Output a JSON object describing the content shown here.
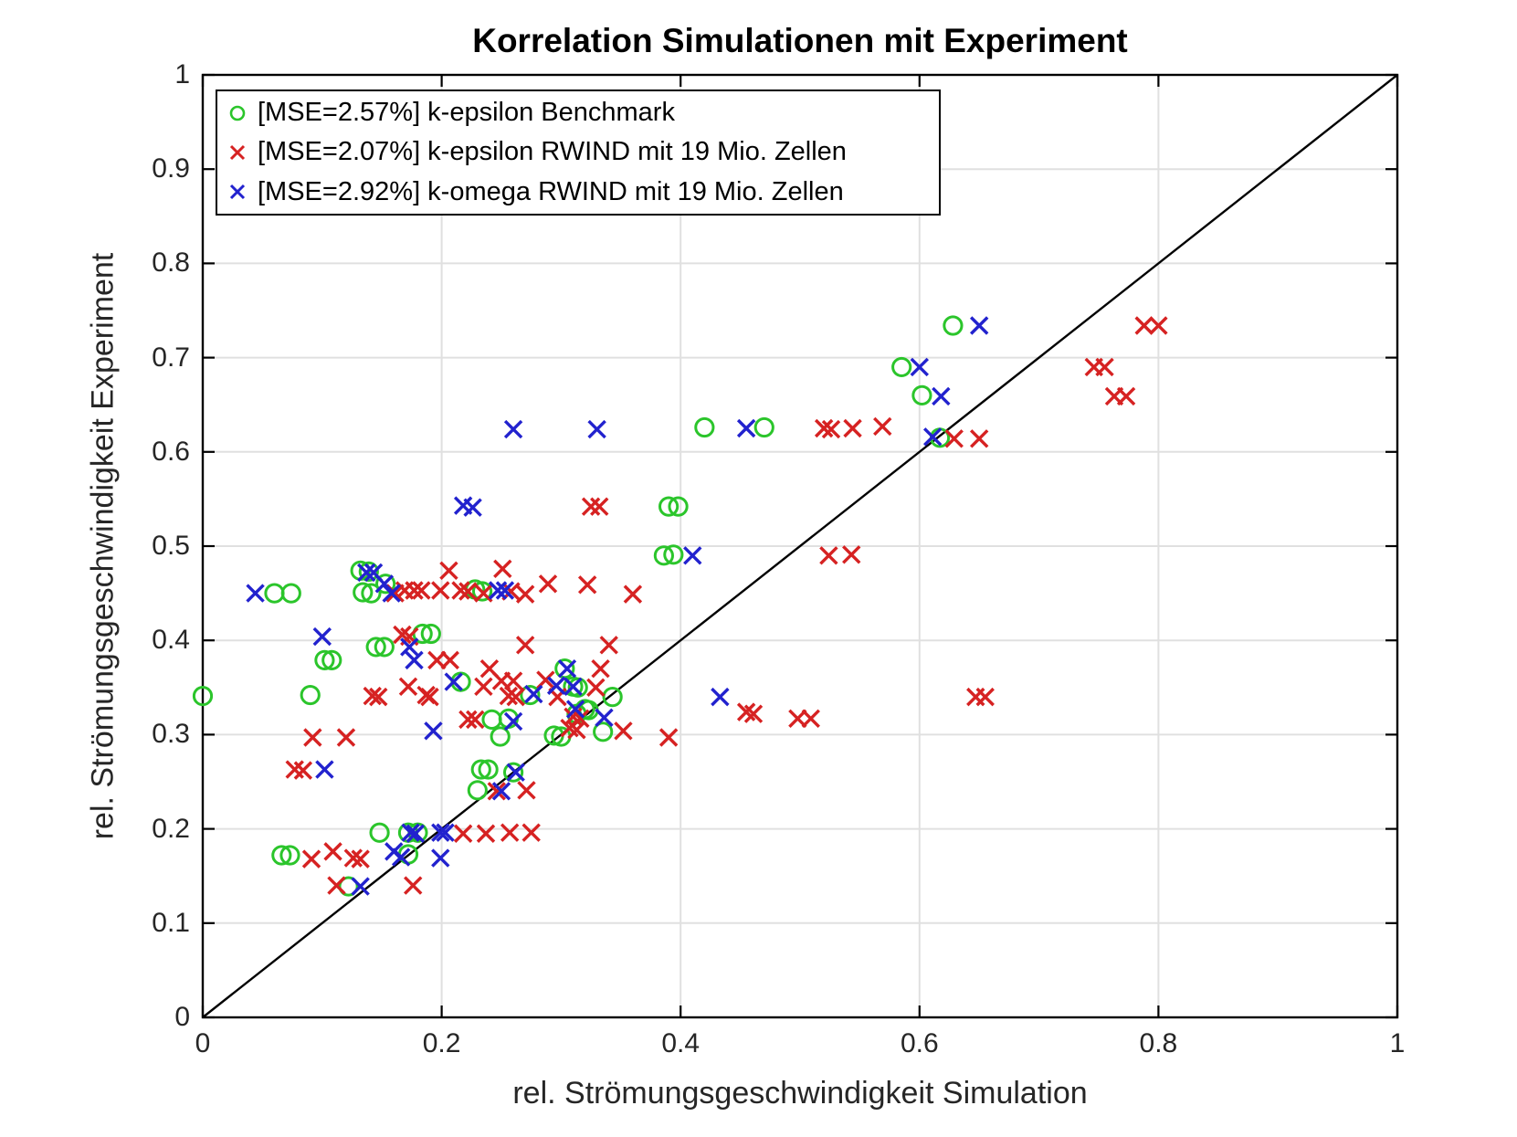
{
  "title": "Korrelation Simulationen mit Experiment",
  "axes": {
    "xlabel": "rel. Strömungsgeschwindigkeit Simulation",
    "ylabel": "rel. Strömungsgeschwindigkeit Experiment",
    "x_ticks": [
      0,
      0.2,
      0.4,
      0.6,
      0.8,
      1
    ],
    "x_tick_labels": [
      "0",
      "0.2",
      "0.4",
      "0.6",
      "0.8",
      "1"
    ],
    "y_ticks": [
      0,
      0.1,
      0.2,
      0.3,
      0.4,
      0.5,
      0.6,
      0.7,
      0.8,
      0.9,
      1
    ],
    "y_tick_labels": [
      "0",
      "0.1",
      "0.2",
      "0.3",
      "0.4",
      "0.5",
      "0.6",
      "0.7",
      "0.8",
      "0.9",
      "1"
    ],
    "grid": true
  },
  "colors": {
    "benchmark_green": "#2BC52B",
    "k_epsilon_red": "#D62222",
    "k_omega_blue": "#2222CE",
    "grid": "#E0E0E0",
    "axis": "#000000",
    "tick_text": "#262626",
    "reference_line": "#000000"
  },
  "legend": {
    "position": "top-left",
    "entries": [
      {
        "marker": "circle",
        "color": "#2BC52B",
        "label": "[MSE=2.57%] k-epsilon Benchmark"
      },
      {
        "marker": "x",
        "color": "#D62222",
        "label": "[MSE=2.07%] k-epsilon RWIND mit 19 Mio. Zellen"
      },
      {
        "marker": "x",
        "color": "#2222CE",
        "label": "[MSE=2.92%] k-omega RWIND mit 19 Mio. Zellen"
      }
    ]
  },
  "chart_data": {
    "type": "scatter",
    "title": "Korrelation Simulationen mit Experiment",
    "xlabel": "rel. Strömungsgeschwindigkeit Simulation",
    "ylabel": "rel. Strömungsgeschwindigkeit Experiment",
    "xlim": [
      0,
      1
    ],
    "ylim": [
      0,
      1
    ],
    "grid": true,
    "reference_line": {
      "type": "identity",
      "from": [
        0,
        0
      ],
      "to": [
        1,
        1
      ]
    },
    "series": [
      {
        "name": "[MSE=2.57%] k-epsilon Benchmark",
        "marker": "circle",
        "color": "#2BC52B",
        "points": [
          [
            0.0,
            0.341
          ],
          [
            0.06,
            0.45
          ],
          [
            0.074,
            0.45
          ],
          [
            0.09,
            0.342
          ],
          [
            0.102,
            0.379
          ],
          [
            0.108,
            0.379
          ],
          [
            0.122,
            0.139
          ],
          [
            0.066,
            0.172
          ],
          [
            0.073,
            0.172
          ],
          [
            0.132,
            0.474
          ],
          [
            0.139,
            0.473
          ],
          [
            0.134,
            0.451
          ],
          [
            0.141,
            0.45
          ],
          [
            0.145,
            0.393
          ],
          [
            0.152,
            0.393
          ],
          [
            0.153,
            0.46
          ],
          [
            0.148,
            0.196
          ],
          [
            0.172,
            0.196
          ],
          [
            0.18,
            0.196
          ],
          [
            0.172,
            0.173
          ],
          [
            0.184,
            0.407
          ],
          [
            0.191,
            0.407
          ],
          [
            0.216,
            0.356
          ],
          [
            0.228,
            0.454
          ],
          [
            0.234,
            0.452
          ],
          [
            0.23,
            0.241
          ],
          [
            0.233,
            0.263
          ],
          [
            0.239,
            0.263
          ],
          [
            0.242,
            0.316
          ],
          [
            0.249,
            0.298
          ],
          [
            0.256,
            0.317
          ],
          [
            0.26,
            0.26
          ],
          [
            0.274,
            0.342
          ],
          [
            0.294,
            0.299
          ],
          [
            0.3,
            0.298
          ],
          [
            0.303,
            0.37
          ],
          [
            0.31,
            0.351
          ],
          [
            0.314,
            0.35
          ],
          [
            0.313,
            0.322
          ],
          [
            0.32,
            0.327
          ],
          [
            0.323,
            0.326
          ],
          [
            0.335,
            0.303
          ],
          [
            0.343,
            0.34
          ],
          [
            0.386,
            0.49
          ],
          [
            0.394,
            0.491
          ],
          [
            0.39,
            0.542
          ],
          [
            0.398,
            0.542
          ],
          [
            0.42,
            0.626
          ],
          [
            0.47,
            0.626
          ],
          [
            0.585,
            0.69
          ],
          [
            0.602,
            0.66
          ],
          [
            0.617,
            0.615
          ],
          [
            0.628,
            0.734
          ]
        ]
      },
      {
        "name": "[MSE=2.07%] k-epsilon RWIND mit 19 Mio. Zellen",
        "marker": "x",
        "color": "#D62222",
        "points": [
          [
            0.077,
            0.263
          ],
          [
            0.084,
            0.262
          ],
          [
            0.091,
            0.168
          ],
          [
            0.092,
            0.297
          ],
          [
            0.109,
            0.176
          ],
          [
            0.112,
            0.14
          ],
          [
            0.12,
            0.297
          ],
          [
            0.126,
            0.169
          ],
          [
            0.132,
            0.168
          ],
          [
            0.142,
            0.341
          ],
          [
            0.147,
            0.34
          ],
          [
            0.161,
            0.45
          ],
          [
            0.167,
            0.406
          ],
          [
            0.173,
            0.404
          ],
          [
            0.169,
            0.453
          ],
          [
            0.177,
            0.453
          ],
          [
            0.183,
            0.453
          ],
          [
            0.172,
            0.351
          ],
          [
            0.176,
            0.14
          ],
          [
            0.187,
            0.342
          ],
          [
            0.19,
            0.34
          ],
          [
            0.196,
            0.379
          ],
          [
            0.199,
            0.453
          ],
          [
            0.206,
            0.474
          ],
          [
            0.207,
            0.379
          ],
          [
            0.216,
            0.453
          ],
          [
            0.222,
            0.452
          ],
          [
            0.218,
            0.195
          ],
          [
            0.222,
            0.316
          ],
          [
            0.228,
            0.316
          ],
          [
            0.235,
            0.45
          ],
          [
            0.235,
            0.351
          ],
          [
            0.237,
            0.195
          ],
          [
            0.24,
            0.37
          ],
          [
            0.246,
            0.24
          ],
          [
            0.25,
            0.357
          ],
          [
            0.251,
            0.476
          ],
          [
            0.256,
            0.341
          ],
          [
            0.257,
            0.196
          ],
          [
            0.258,
            0.452
          ],
          [
            0.26,
            0.357
          ],
          [
            0.262,
            0.34
          ],
          [
            0.27,
            0.395
          ],
          [
            0.27,
            0.449
          ],
          [
            0.271,
            0.241
          ],
          [
            0.275,
            0.196
          ],
          [
            0.287,
            0.358
          ],
          [
            0.289,
            0.46
          ],
          [
            0.297,
            0.34
          ],
          [
            0.307,
            0.307
          ],
          [
            0.313,
            0.305
          ],
          [
            0.31,
            0.319
          ],
          [
            0.316,
            0.317
          ],
          [
            0.322,
            0.459
          ],
          [
            0.325,
            0.542
          ],
          [
            0.332,
            0.542
          ],
          [
            0.329,
            0.35
          ],
          [
            0.333,
            0.37
          ],
          [
            0.34,
            0.395
          ],
          [
            0.352,
            0.304
          ],
          [
            0.36,
            0.449
          ],
          [
            0.39,
            0.297
          ],
          [
            0.455,
            0.324
          ],
          [
            0.461,
            0.322
          ],
          [
            0.498,
            0.317
          ],
          [
            0.509,
            0.317
          ],
          [
            0.52,
            0.625
          ],
          [
            0.526,
            0.624
          ],
          [
            0.524,
            0.49
          ],
          [
            0.543,
            0.491
          ],
          [
            0.544,
            0.625
          ],
          [
            0.569,
            0.627
          ],
          [
            0.629,
            0.614
          ],
          [
            0.65,
            0.614
          ],
          [
            0.647,
            0.34
          ],
          [
            0.655,
            0.34
          ],
          [
            0.746,
            0.69
          ],
          [
            0.755,
            0.69
          ],
          [
            0.763,
            0.659
          ],
          [
            0.773,
            0.659
          ],
          [
            0.788,
            0.734
          ],
          [
            0.8,
            0.734
          ]
        ]
      },
      {
        "name": "[MSE=2.92%] k-omega RWIND mit 19 Mio. Zellen",
        "marker": "x",
        "color": "#2222CE",
        "points": [
          [
            0.044,
            0.45
          ],
          [
            0.1,
            0.404
          ],
          [
            0.102,
            0.263
          ],
          [
            0.132,
            0.139
          ],
          [
            0.137,
            0.472
          ],
          [
            0.143,
            0.472
          ],
          [
            0.152,
            0.46
          ],
          [
            0.158,
            0.45
          ],
          [
            0.16,
            0.176
          ],
          [
            0.166,
            0.17
          ],
          [
            0.173,
            0.393
          ],
          [
            0.177,
            0.379
          ],
          [
            0.174,
            0.196
          ],
          [
            0.178,
            0.195
          ],
          [
            0.193,
            0.304
          ],
          [
            0.199,
            0.196
          ],
          [
            0.203,
            0.196
          ],
          [
            0.199,
            0.169
          ],
          [
            0.21,
            0.356
          ],
          [
            0.218,
            0.543
          ],
          [
            0.226,
            0.541
          ],
          [
            0.247,
            0.453
          ],
          [
            0.253,
            0.453
          ],
          [
            0.25,
            0.24
          ],
          [
            0.26,
            0.624
          ],
          [
            0.26,
            0.314
          ],
          [
            0.262,
            0.26
          ],
          [
            0.277,
            0.343
          ],
          [
            0.296,
            0.352
          ],
          [
            0.305,
            0.37
          ],
          [
            0.31,
            0.351
          ],
          [
            0.312,
            0.327
          ],
          [
            0.33,
            0.624
          ],
          [
            0.336,
            0.318
          ],
          [
            0.41,
            0.49
          ],
          [
            0.433,
            0.34
          ],
          [
            0.455,
            0.625
          ],
          [
            0.6,
            0.69
          ],
          [
            0.611,
            0.616
          ],
          [
            0.618,
            0.659
          ],
          [
            0.65,
            0.734
          ]
        ]
      }
    ]
  }
}
